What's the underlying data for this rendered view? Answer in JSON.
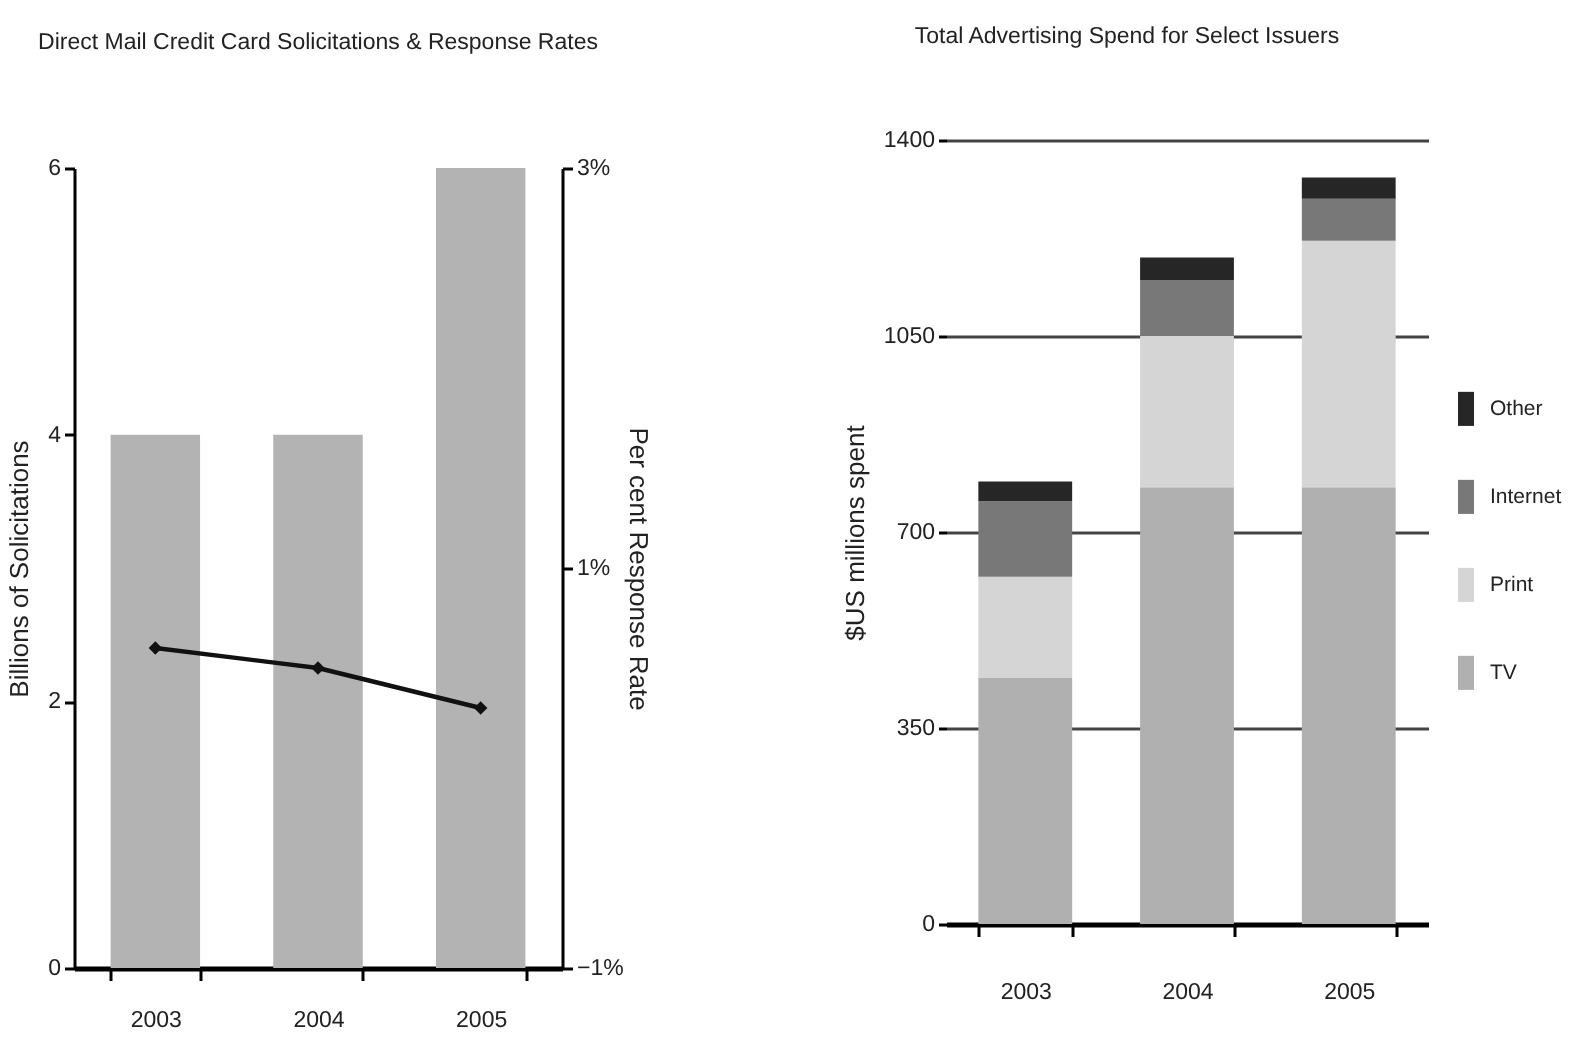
{
  "chart_data": [
    {
      "type": "bar",
      "title": "Direct Mail Credit Card Solicitations & Response Rates",
      "ylabel": "Billions of Solicitations",
      "y2label": "Per cent Response Rate",
      "categories": [
        "2003",
        "2004",
        "2005"
      ],
      "series": [
        {
          "type": "bar",
          "color": "#b3b3b3",
          "values": [
            4,
            4,
            6
          ]
        },
        {
          "type": "line",
          "axis": "y2",
          "color": "#111111",
          "values": [
            0.6,
            0.5,
            0.3
          ]
        }
      ],
      "ylim": [
        0,
        6
      ],
      "yticks": [
        0,
        2,
        4,
        6
      ],
      "y2lim": [
        -1,
        3
      ],
      "y2ticks": [
        {
          "value": -1,
          "label": "−1%"
        },
        {
          "value": 1,
          "label": "1%"
        },
        {
          "value": 3,
          "label": "3%"
        }
      ],
      "marker": "diamond",
      "legend": false
    },
    {
      "type": "bar",
      "stacked": true,
      "title": "Total Advertising Spend for Select Issuers",
      "ylabel": "$US millions spent",
      "categories": [
        "2003",
        "2004",
        "2005"
      ],
      "series": [
        {
          "name": "TV",
          "color": "#b0b0b0",
          "values": [
            440,
            780,
            780
          ]
        },
        {
          "name": "Print",
          "color": "#d5d5d5",
          "values": [
            180,
            270,
            440
          ]
        },
        {
          "name": "Internet",
          "color": "#787878",
          "values": [
            135,
            100,
            75
          ]
        },
        {
          "name": "Other",
          "color": "#262626",
          "values": [
            35,
            40,
            38
          ]
        }
      ],
      "ylim": [
        0,
        1400
      ],
      "yticks": [
        0,
        350,
        700,
        1050,
        1400
      ],
      "grid": "y",
      "legend": "right"
    }
  ]
}
